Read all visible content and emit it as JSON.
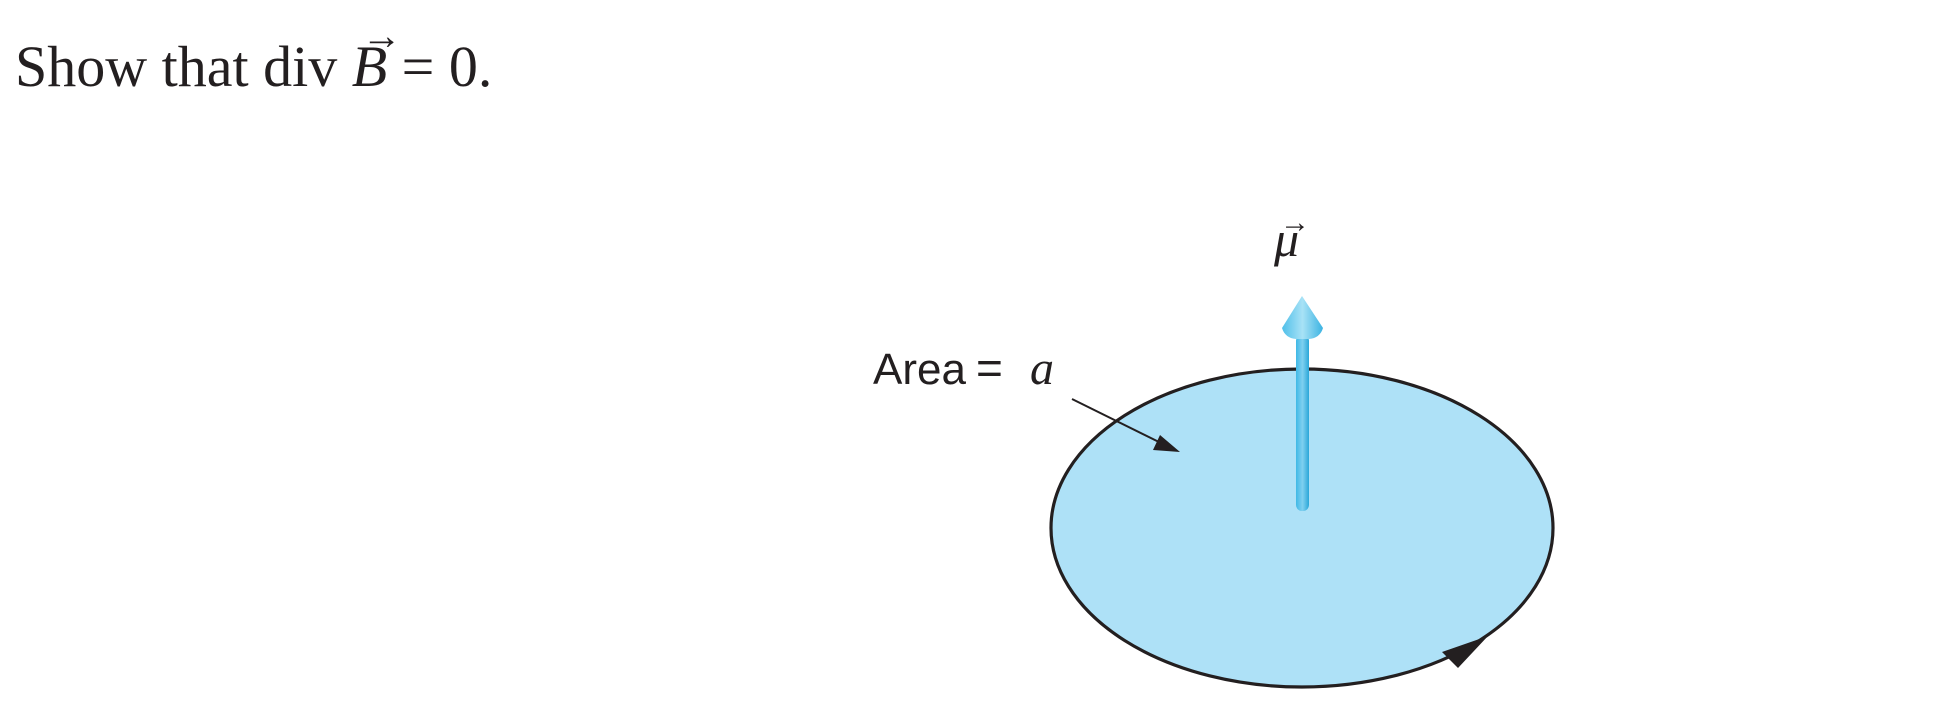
{
  "problem": {
    "prefix": "Show that div ",
    "vector": "B",
    "vector_arrow": "→",
    "suffix": " = 0."
  },
  "diagram": {
    "area_label": "Area",
    "area_equals": "=",
    "area_var": "a",
    "moment_label": "μ",
    "moment_arrow": "→",
    "colors": {
      "disk_fill": "#aee1f7",
      "disk_edge": "#231f20",
      "moment_arrow": "#3fb8e6",
      "moment_arrow_light": "#8fd6f2",
      "pointer": "#231f20"
    },
    "icons": {
      "disk": "current-loop-disk",
      "moment": "magnetic-moment-arrow",
      "direction": "current-direction-arrowhead",
      "pointer": "area-pointer-arrow"
    }
  }
}
